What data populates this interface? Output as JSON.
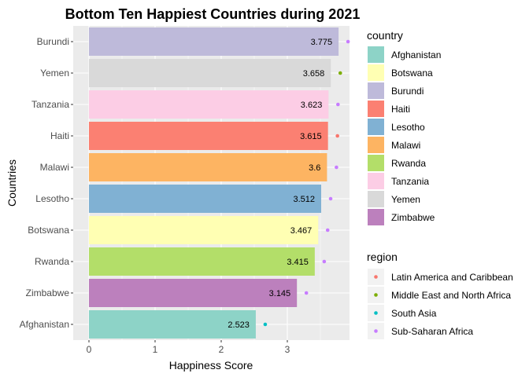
{
  "chart_data": {
    "type": "bar",
    "orientation": "horizontal",
    "title": "Bottom Ten Happiest Countries during 2021",
    "xlabel": "Happiness Score",
    "ylabel": "Countries",
    "xlim": [
      0,
      3.9
    ],
    "xticks": [
      0,
      1,
      2,
      3
    ],
    "grid": true,
    "legend_placement": "right",
    "categories": [
      "Burundi",
      "Yemen",
      "Tanzania",
      "Haiti",
      "Malawi",
      "Lesotho",
      "Botswana",
      "Rwanda",
      "Zimbabwe",
      "Afghanistan"
    ],
    "values": [
      3.775,
      3.658,
      3.623,
      3.615,
      3.6,
      3.512,
      3.467,
      3.415,
      3.145,
      2.523
    ],
    "value_labels": [
      "3.775",
      "3.658",
      "3.623",
      "3.615",
      "3.6",
      "3.512",
      "3.467",
      "3.415",
      "3.145",
      "2.523"
    ],
    "regions": [
      "Sub-Saharan Africa",
      "Middle East and North Africa",
      "Sub-Saharan Africa",
      "Latin America and Caribbean",
      "Sub-Saharan Africa",
      "Sub-Saharan Africa",
      "Sub-Saharan Africa",
      "Sub-Saharan Africa",
      "Sub-Saharan Africa",
      "South Asia"
    ],
    "country_legend": {
      "title": "country",
      "entries": [
        {
          "name": "Afghanistan",
          "color": "#8DD3C7"
        },
        {
          "name": "Botswana",
          "color": "#FFFFB3"
        },
        {
          "name": "Burundi",
          "color": "#BEBADA"
        },
        {
          "name": "Haiti",
          "color": "#FB8072"
        },
        {
          "name": "Lesotho",
          "color": "#80B1D3"
        },
        {
          "name": "Malawi",
          "color": "#FDB462"
        },
        {
          "name": "Rwanda",
          "color": "#B3DE69"
        },
        {
          "name": "Tanzania",
          "color": "#FCCDE5"
        },
        {
          "name": "Yemen",
          "color": "#D9D9D9"
        },
        {
          "name": "Zimbabwe",
          "color": "#BC80BD"
        }
      ]
    },
    "region_legend": {
      "title": "region",
      "entries": [
        {
          "name": "Latin America and Caribbean",
          "color": "#F8766D"
        },
        {
          "name": "Middle East and North Africa",
          "color": "#7CAE00"
        },
        {
          "name": "South Asia",
          "color": "#00BFC4"
        },
        {
          "name": "Sub-Saharan Africa",
          "color": "#C77CFF"
        }
      ]
    },
    "panel_background": "#EBEBEB",
    "grid_color": "#FFFFFF"
  }
}
